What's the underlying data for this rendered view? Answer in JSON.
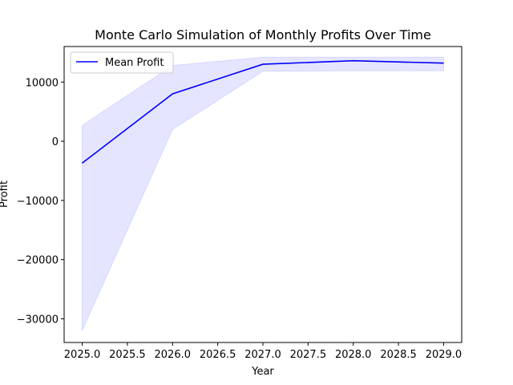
{
  "chart_data": {
    "type": "line",
    "title": "Monte Carlo Simulation of Monthly Profits Over Time",
    "xlabel": "Year",
    "ylabel": "Profit",
    "x": [
      2025,
      2026,
      2027,
      2028,
      2029
    ],
    "series": [
      {
        "name": "Mean Profit",
        "values": [
          -3700,
          8000,
          13000,
          13600,
          13200
        ],
        "color": "#0000ff"
      }
    ],
    "band": {
      "lower": [
        -32000,
        2000,
        11800,
        11900,
        11900
      ],
      "upper": [
        2700,
        12800,
        14200,
        14200,
        14200
      ],
      "color": "#0000ff",
      "opacity": 0.1
    },
    "xlim": [
      2024.8,
      2029.2
    ],
    "ylim": [
      -34000,
      16000
    ],
    "xticks": [
      "2025.0",
      "2025.5",
      "2026.0",
      "2026.5",
      "2027.0",
      "2027.5",
      "2028.0",
      "2028.5",
      "2029.0"
    ],
    "xtick_values": [
      2025.0,
      2025.5,
      2026.0,
      2026.5,
      2027.0,
      2027.5,
      2028.0,
      2028.5,
      2029.0
    ],
    "yticks": [
      "−30000",
      "−20000",
      "−10000",
      "0",
      "10000"
    ],
    "ytick_values": [
      -30000,
      -20000,
      -10000,
      0,
      10000
    ],
    "grid": false,
    "legend_position": "top-left"
  }
}
